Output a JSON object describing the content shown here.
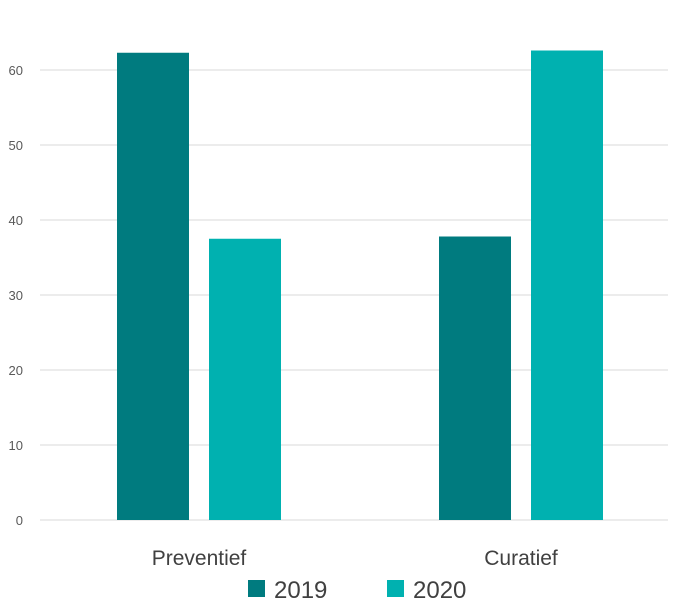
{
  "chart_data": {
    "type": "bar",
    "title": "",
    "xlabel": "",
    "ylabel": "",
    "categories": [
      "Preventief",
      "Curatief"
    ],
    "series": [
      {
        "name": "2019",
        "values": [
          62.3,
          37.8
        ],
        "color": "#007b7f"
      },
      {
        "name": "2020",
        "values": [
          37.5,
          62.6
        ],
        "color": "#00b1b0"
      }
    ],
    "ylim": [
      0,
      60
    ],
    "yticks": [
      0,
      10,
      20,
      30,
      40,
      50,
      60
    ],
    "grid": true,
    "legend_position": "bottom"
  }
}
